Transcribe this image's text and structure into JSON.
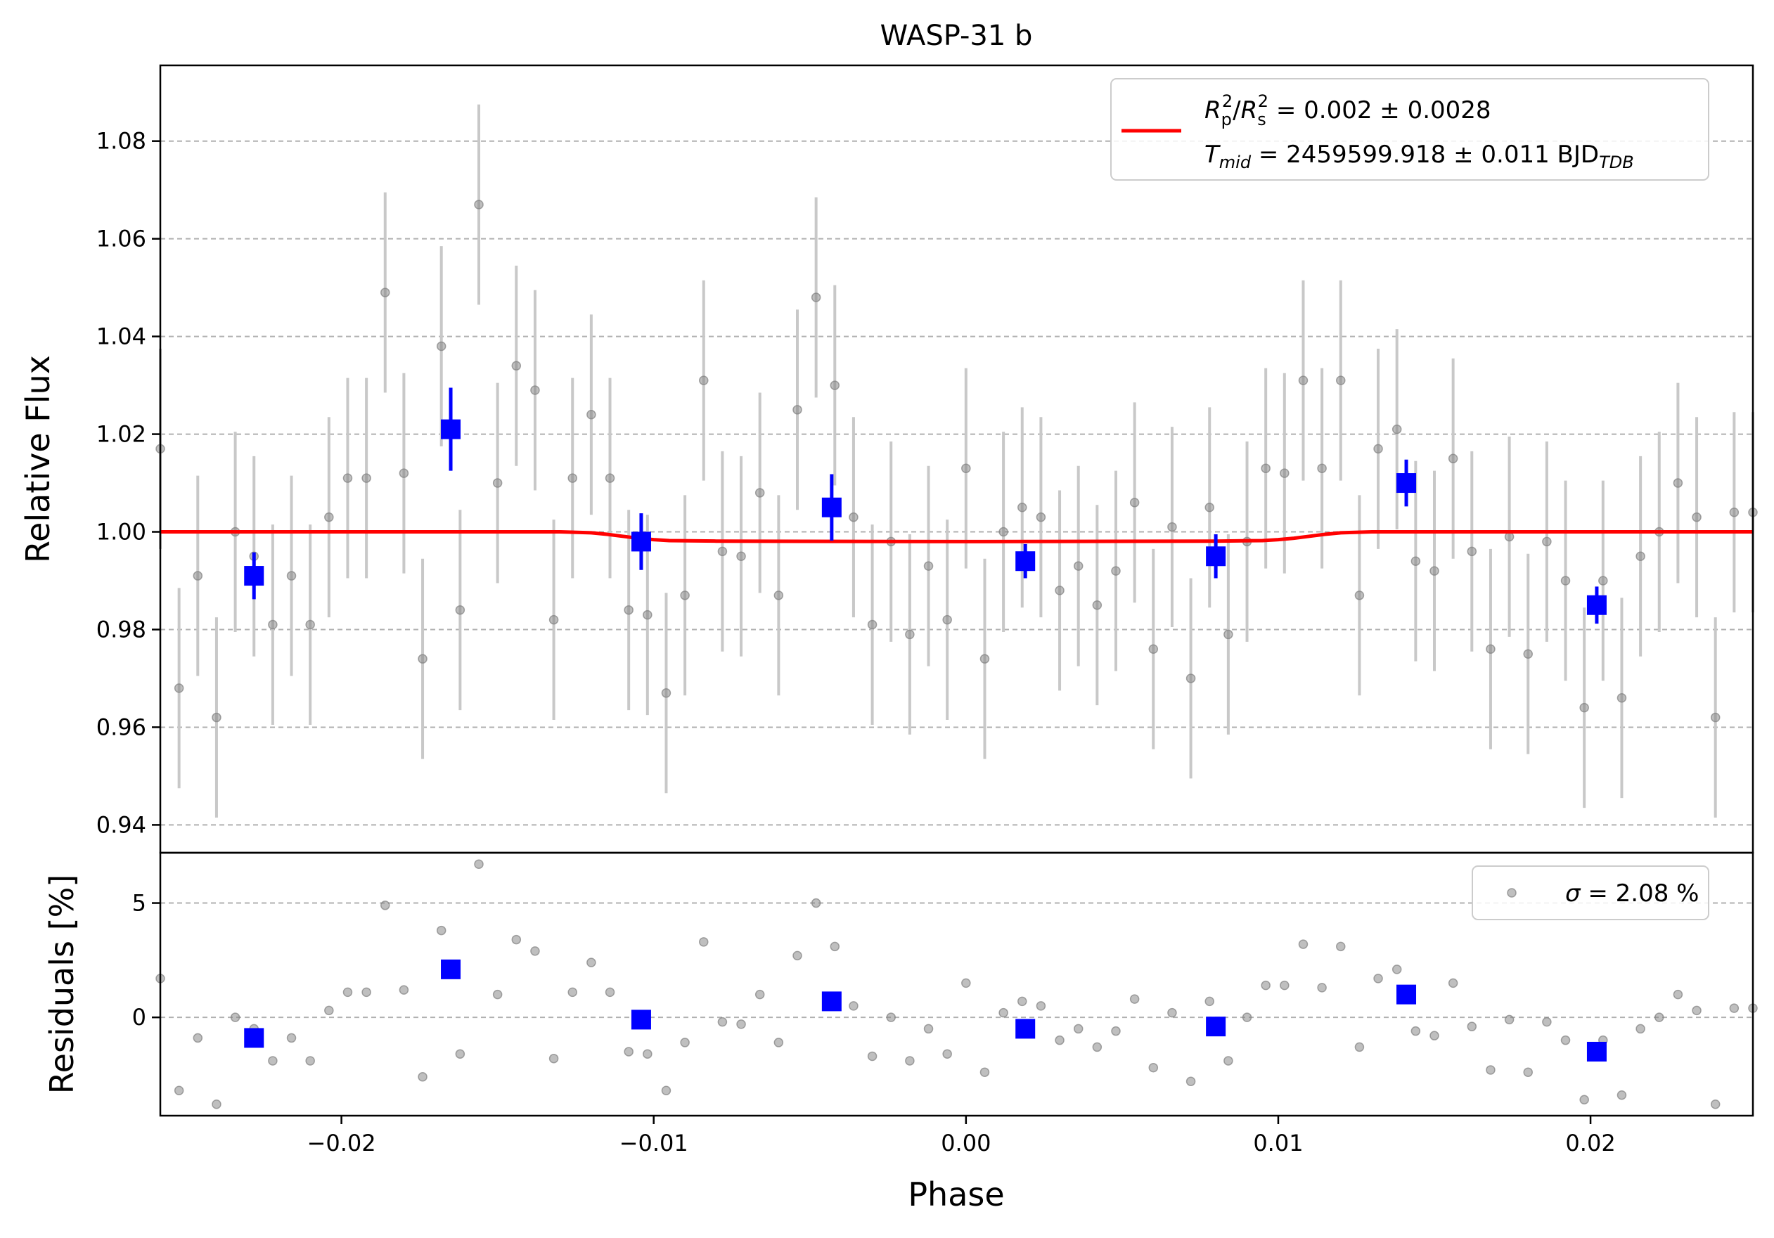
{
  "chart_data": {
    "type": "scatter",
    "title": "WASP-31 b",
    "xlabel": "Phase",
    "xlim": [
      -0.0258,
      0.0252
    ],
    "x_ticks": [
      -0.02,
      -0.01,
      0.0,
      0.01,
      0.02
    ],
    "x_tick_labels": [
      "−0.02",
      "−0.01",
      "0.00",
      "0.01",
      "0.02"
    ],
    "colors": {
      "raw": "#808080",
      "errorbar": "#c8c8c8",
      "binned": "#0000ff",
      "model": "#ff0000",
      "grid": "#b0b0b0"
    },
    "panels": [
      {
        "name": "flux",
        "ylabel": "Relative Flux",
        "ylim": [
          0.9343,
          1.0955
        ],
        "y_ticks": [
          0.94,
          0.96,
          0.98,
          1.0,
          1.02,
          1.04,
          1.06,
          1.08
        ],
        "y_tick_labels": [
          "0.94",
          "0.96",
          "0.98",
          "1.00",
          "1.02",
          "1.04",
          "1.06",
          "1.08"
        ],
        "grid": true,
        "legend": {
          "placement": "upper right",
          "entries": [
            {
              "marker": "line",
              "color": "#ff0000",
              "name": "R_p²/R_s² = 0.002 ± 0.0028"
            },
            {
              "marker": "none",
              "name": "T_mid = 2459599.918 ± 0.011 BJD_TDB"
            }
          ]
        },
        "raw_error": 0.0205,
        "series": [
          {
            "name": "raw",
            "marker": "circle",
            "x": [
              -0.0258,
              -0.0252,
              -0.0246,
              -0.024,
              -0.0234,
              -0.0228,
              -0.0222,
              -0.0216,
              -0.021,
              -0.0204,
              -0.0198,
              -0.0192,
              -0.0186,
              -0.018,
              -0.0174,
              -0.0168,
              -0.0162,
              -0.0156,
              -0.015,
              -0.0144,
              -0.0138,
              -0.0132,
              -0.0126,
              -0.012,
              -0.0114,
              -0.0108,
              -0.0102,
              -0.0096,
              -0.009,
              -0.0084,
              -0.0078,
              -0.0072,
              -0.0066,
              -0.006,
              -0.0054,
              -0.0048,
              -0.0042,
              -0.0036,
              -0.003,
              -0.0024,
              -0.0018,
              -0.0012,
              -0.0006,
              0.0,
              0.0006,
              0.0012,
              0.0018,
              0.0024,
              0.003,
              0.0036,
              0.0042,
              0.0048,
              0.0054,
              0.006,
              0.0066,
              0.0072,
              0.0078,
              0.0084,
              0.009,
              0.0096,
              0.0102,
              0.0108,
              0.0114,
              0.012,
              0.0126,
              0.0132,
              0.0138,
              0.0144,
              0.015,
              0.0156,
              0.0162,
              0.0168,
              0.0174,
              0.018,
              0.0186,
              0.0192,
              0.0198,
              0.0204,
              0.021,
              0.0216,
              0.0222,
              0.0228,
              0.0234,
              0.024,
              0.0246,
              0.0252
            ],
            "y": [
              1.017,
              0.968,
              0.991,
              0.962,
              1.0,
              0.995,
              0.981,
              0.991,
              0.981,
              1.003,
              1.011,
              1.011,
              1.049,
              1.012,
              0.974,
              1.038,
              0.984,
              1.067,
              1.01,
              1.034,
              1.029,
              0.982,
              1.011,
              1.024,
              1.011,
              0.984,
              0.983,
              0.967,
              0.987,
              1.031,
              0.996,
              0.995,
              1.008,
              0.987,
              1.025,
              1.048,
              1.03,
              1.003,
              0.981,
              0.998,
              0.979,
              0.993,
              0.982,
              1.013,
              0.974,
              1.0,
              1.005,
              1.003,
              0.988,
              0.993,
              0.985,
              0.992,
              1.006,
              0.976,
              1.001,
              0.97,
              1.005,
              0.979,
              0.998,
              1.013,
              1.012,
              1.031,
              1.013,
              1.031,
              0.987,
              1.017,
              1.021,
              0.994,
              0.992,
              1.015,
              0.996,
              0.976,
              0.999,
              0.975,
              0.998,
              0.99,
              0.964,
              0.99,
              0.966,
              0.995,
              1.0,
              1.01,
              1.003,
              0.962,
              1.004,
              1.004
            ]
          },
          {
            "name": "binned",
            "marker": "square",
            "x": [
              -0.0228,
              -0.0165,
              -0.0104,
              -0.0043,
              0.0019,
              0.008,
              0.0141,
              0.0202
            ],
            "y": [
              0.991,
              1.021,
              0.998,
              1.005,
              0.994,
              0.995,
              1.01,
              0.985
            ],
            "err": [
              0.0048,
              0.0085,
              0.0058,
              0.0068,
              0.0035,
              0.0045,
              0.0048,
              0.0038
            ]
          },
          {
            "name": "model",
            "marker": "line",
            "x": [
              -0.0258,
              -0.013,
              -0.012,
              -0.0115,
              -0.011,
              -0.0105,
              -0.01,
              -0.0095,
              -0.008,
              0.0,
              0.008,
              0.0095,
              0.01,
              0.0105,
              0.011,
              0.0115,
              0.012,
              0.013,
              0.0252
            ],
            "y": [
              1.0,
              1.0,
              0.9998,
              0.9995,
              0.9991,
              0.9987,
              0.9984,
              0.9982,
              0.9981,
              0.998,
              0.9981,
              0.9982,
              0.9984,
              0.9987,
              0.9991,
              0.9995,
              0.9998,
              1.0,
              1.0
            ]
          }
        ]
      },
      {
        "name": "residuals",
        "ylabel": "Residuals [%]",
        "ylim": [
          -4.3,
          7.2
        ],
        "y_ticks": [
          0,
          5
        ],
        "y_tick_labels": [
          "0",
          "5"
        ],
        "grid": true,
        "legend": {
          "placement": "upper right",
          "entries": [
            {
              "marker": "circle",
              "color": "#808080",
              "name": "σ = 2.08 %"
            }
          ]
        },
        "series": [
          {
            "name": "raw",
            "marker": "circle",
            "x": [
              -0.0258,
              -0.0252,
              -0.0246,
              -0.024,
              -0.0234,
              -0.0228,
              -0.0222,
              -0.0216,
              -0.021,
              -0.0204,
              -0.0198,
              -0.0192,
              -0.0186,
              -0.018,
              -0.0174,
              -0.0168,
              -0.0162,
              -0.0156,
              -0.015,
              -0.0144,
              -0.0138,
              -0.0132,
              -0.0126,
              -0.012,
              -0.0114,
              -0.0108,
              -0.0102,
              -0.0096,
              -0.009,
              -0.0084,
              -0.0078,
              -0.0072,
              -0.0066,
              -0.006,
              -0.0054,
              -0.0048,
              -0.0042,
              -0.0036,
              -0.003,
              -0.0024,
              -0.0018,
              -0.0012,
              -0.0006,
              0.0,
              0.0006,
              0.0012,
              0.0018,
              0.0024,
              0.003,
              0.0036,
              0.0042,
              0.0048,
              0.0054,
              0.006,
              0.0066,
              0.0072,
              0.0078,
              0.0084,
              0.009,
              0.0096,
              0.0102,
              0.0108,
              0.0114,
              0.012,
              0.0126,
              0.0132,
              0.0138,
              0.0144,
              0.015,
              0.0156,
              0.0162,
              0.0168,
              0.0174,
              0.018,
              0.0186,
              0.0192,
              0.0198,
              0.0204,
              0.021,
              0.0216,
              0.0222,
              0.0228,
              0.0234,
              0.024,
              0.0246,
              0.0252
            ],
            "y": [
              1.7,
              -3.2,
              -0.9,
              -3.8,
              0.0,
              -0.5,
              -1.9,
              -0.9,
              -1.9,
              0.3,
              1.1,
              1.1,
              4.9,
              1.2,
              -2.6,
              3.8,
              -1.6,
              6.7,
              1.0,
              3.4,
              2.9,
              -1.8,
              1.1,
              2.4,
              1.1,
              -1.5,
              -1.6,
              -3.2,
              -1.1,
              3.3,
              -0.2,
              -0.3,
              1.0,
              -1.1,
              2.7,
              5.0,
              3.1,
              0.5,
              -1.7,
              0.0,
              -1.9,
              -0.5,
              -1.6,
              1.5,
              -2.4,
              0.2,
              0.7,
              0.5,
              -1.0,
              -0.5,
              -1.3,
              -0.6,
              0.8,
              -2.2,
              0.2,
              -2.8,
              0.7,
              -1.9,
              0.0,
              1.4,
              1.4,
              3.2,
              1.3,
              3.1,
              -1.3,
              1.7,
              2.1,
              -0.6,
              -0.8,
              1.5,
              -0.4,
              -2.3,
              -0.1,
              -2.4,
              -0.2,
              -1.0,
              -3.6,
              -1.0,
              -3.4,
              -0.5,
              0.0,
              1.0,
              0.3,
              -3.8,
              0.4,
              0.4
            ]
          },
          {
            "name": "binned",
            "marker": "square",
            "x": [
              -0.0228,
              -0.0165,
              -0.0104,
              -0.0043,
              0.0019,
              0.008,
              0.0141,
              0.0202
            ],
            "y": [
              -0.9,
              2.1,
              -0.1,
              0.7,
              -0.5,
              -0.4,
              1.0,
              -1.5
            ]
          }
        ]
      }
    ]
  }
}
